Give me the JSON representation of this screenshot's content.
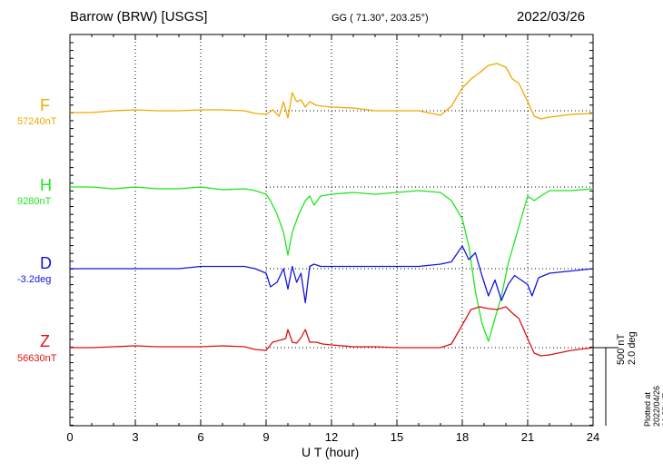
{
  "header": {
    "station": "Barrow (BRW)  [USGS]",
    "coords": "GG ( 71.30°, 203.25°)",
    "date": "2022/03/26"
  },
  "footer": {
    "plotted": "Plotted at 2022/04/26 00:55 UT",
    "scale": [
      "500 nT",
      "2.0 deg"
    ]
  },
  "chart_data": {
    "type": "line",
    "xlabel": "U T (hour)",
    "xlim": [
      0,
      24
    ],
    "xticks": [
      "0",
      "3",
      "6",
      "9",
      "12",
      "15",
      "18",
      "21",
      "24"
    ],
    "grid": true,
    "scale_bar": {
      "nT": 500,
      "deg": 2.0
    },
    "series": [
      {
        "name": "F",
        "baseline": "57240nT",
        "color": "#f0a800",
        "x": [
          0,
          1,
          2,
          3,
          4,
          5,
          6,
          7,
          8,
          8.5,
          9,
          9.3,
          9.6,
          9.8,
          10,
          10.2,
          10.4,
          10.6,
          10.8,
          11,
          11.3,
          11.6,
          12,
          13,
          14,
          15,
          16,
          17,
          17.5,
          18,
          18.4,
          18.8,
          19.2,
          19.6,
          20,
          20.3,
          20.6,
          21,
          21.3,
          21.6,
          22,
          23,
          24
        ],
        "y": [
          -20,
          -20,
          0,
          10,
          0,
          0,
          10,
          10,
          0,
          -30,
          -40,
          10,
          -60,
          100,
          -80,
          200,
          100,
          120,
          40,
          100,
          60,
          50,
          40,
          30,
          0,
          0,
          0,
          -50,
          50,
          250,
          350,
          420,
          500,
          520,
          480,
          350,
          300,
          100,
          -60,
          -90,
          -70,
          -40,
          -30
        ]
      },
      {
        "name": "H",
        "baseline": "9280nT",
        "color": "#1ee61e",
        "x": [
          0,
          1,
          2,
          3,
          4,
          5,
          6,
          7,
          8,
          8.5,
          9,
          9.2,
          9.5,
          9.8,
          10,
          10.2,
          10.5,
          10.8,
          11,
          11.2,
          11.5,
          12,
          13,
          14,
          15,
          16,
          17,
          17.5,
          18,
          18.3,
          18.6,
          18.9,
          19.2,
          19.5,
          19.8,
          20.1,
          20.4,
          20.7,
          21,
          21.3,
          21.6,
          22,
          23,
          24
        ],
        "y": [
          0,
          0,
          -20,
          0,
          -20,
          -20,
          0,
          -30,
          -20,
          -40,
          -80,
          -150,
          -300,
          -500,
          -750,
          -500,
          -300,
          -150,
          -100,
          -200,
          -100,
          -80,
          -60,
          -80,
          -60,
          -40,
          -60,
          -150,
          -350,
          -650,
          -1150,
          -1500,
          -1700,
          -1450,
          -1200,
          -850,
          -600,
          -350,
          -100,
          -150,
          -100,
          -40,
          -40,
          -20
        ]
      },
      {
        "name": "D",
        "baseline": "-3.2deg",
        "color": "#1515e0",
        "x": [
          0,
          1,
          2,
          3,
          4,
          5,
          6,
          7,
          8,
          8.5,
          9,
          9.2,
          9.5,
          9.8,
          10,
          10.2,
          10.4,
          10.6,
          10.8,
          11,
          11.2,
          11.5,
          12,
          13,
          14,
          15,
          16,
          17,
          17.5,
          18,
          18.3,
          18.6,
          18.9,
          19.2,
          19.5,
          19.8,
          20.1,
          20.4,
          20.7,
          21,
          21.2,
          21.5,
          22,
          23,
          24
        ],
        "y": [
          0,
          0,
          0,
          0,
          0,
          0,
          0.1,
          0.1,
          0.1,
          0,
          -0.2,
          -0.8,
          -0.6,
          0,
          -0.9,
          0.1,
          -0.6,
          -0.2,
          -1.5,
          0.1,
          0.2,
          0.1,
          0.1,
          0.1,
          0.1,
          0.1,
          0.1,
          0.2,
          0.3,
          1.0,
          0.4,
          0.7,
          -0.3,
          -1.2,
          -0.5,
          -1.4,
          -0.7,
          -0.3,
          -0.5,
          -0.7,
          -1.2,
          -0.4,
          -0.2,
          -0.1,
          0
        ]
      },
      {
        "name": "Z",
        "baseline": "56630nT",
        "color": "#e01010",
        "x": [
          0,
          1,
          2,
          3,
          4,
          5,
          6,
          7,
          8,
          8.5,
          9,
          9.3,
          9.6,
          9.9,
          10,
          10.2,
          10.4,
          10.6,
          10.8,
          11,
          11.3,
          11.6,
          12,
          13,
          14,
          15,
          16,
          17,
          17.5,
          18,
          18.4,
          18.8,
          19.2,
          19.6,
          20,
          20.3,
          20.6,
          21,
          21.3,
          21.6,
          22,
          23,
          24
        ],
        "y": [
          0,
          0,
          10,
          20,
          10,
          10,
          10,
          20,
          10,
          -20,
          -30,
          60,
          80,
          100,
          200,
          60,
          50,
          110,
          200,
          60,
          60,
          40,
          30,
          10,
          10,
          0,
          0,
          0,
          40,
          250,
          420,
          450,
          430,
          420,
          450,
          380,
          320,
          100,
          -60,
          -90,
          -80,
          -30,
          0
        ]
      }
    ]
  }
}
